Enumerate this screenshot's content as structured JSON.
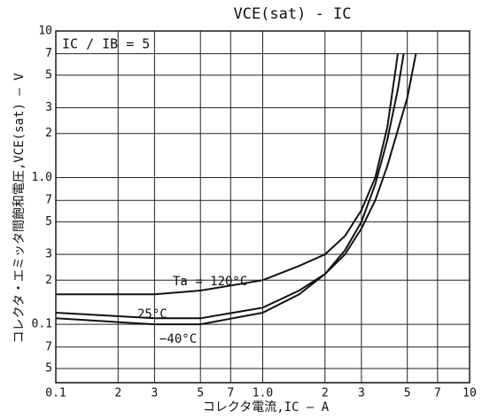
{
  "chart_data": {
    "type": "line",
    "title": "VCE(sat) - IC",
    "x_label": "コレクタ電流,IC — A",
    "y_label": "コレクタ・エミッタ間飽和電圧,VCE(sat) — V",
    "annotations": [
      "IC / IB = 5"
    ],
    "log_x": true,
    "log_y": true,
    "grid": true,
    "xlim": [
      0.1,
      10
    ],
    "ylim": [
      0.04,
      10
    ],
    "xticks": [
      {
        "value": 0.1,
        "label": "0.1"
      },
      {
        "value": 0.2,
        "label": "2"
      },
      {
        "value": 0.3,
        "label": "3"
      },
      {
        "value": 0.5,
        "label": "5"
      },
      {
        "value": 0.7,
        "label": "7"
      },
      {
        "value": 1,
        "label": "1.0"
      },
      2,
      3,
      5,
      7,
      10
    ],
    "yticks": [
      {
        "value": 0.05,
        "label": "5"
      },
      {
        "value": 0.07,
        "label": "7"
      },
      {
        "value": 0.1,
        "label": "0.1"
      },
      {
        "value": 0.2,
        "label": "2"
      },
      {
        "value": 0.3,
        "label": "3"
      },
      {
        "value": 0.5,
        "label": "5"
      },
      {
        "value": 0.7,
        "label": "7"
      },
      {
        "value": 1,
        "label": "1.0"
      },
      2,
      3,
      5,
      7,
      10
    ],
    "series": [
      {
        "name": "Ta = 120°C",
        "color": "#111111",
        "x": [
          0.1,
          0.3,
          0.5,
          1,
          1.5,
          2,
          2.5,
          3,
          3.5,
          4,
          4.5
        ],
        "values": [
          0.16,
          0.16,
          0.17,
          0.2,
          0.25,
          0.3,
          0.4,
          0.6,
          1.0,
          2.2,
          7
        ]
      },
      {
        "name": "25°C",
        "color": "#111111",
        "x": [
          0.1,
          0.3,
          0.5,
          1,
          1.5,
          2,
          2.5,
          3,
          3.5,
          4,
          4.5,
          4.8
        ],
        "values": [
          0.12,
          0.11,
          0.11,
          0.13,
          0.17,
          0.22,
          0.32,
          0.5,
          0.9,
          1.8,
          4,
          7
        ]
      },
      {
        "name": "−40°C",
        "color": "#111111",
        "x": [
          0.1,
          0.3,
          0.5,
          1,
          1.5,
          2,
          2.5,
          3,
          3.5,
          4,
          5,
          5.5
        ],
        "values": [
          0.11,
          0.1,
          0.1,
          0.12,
          0.16,
          0.22,
          0.3,
          0.45,
          0.7,
          1.2,
          3.5,
          7
        ]
      }
    ]
  }
}
